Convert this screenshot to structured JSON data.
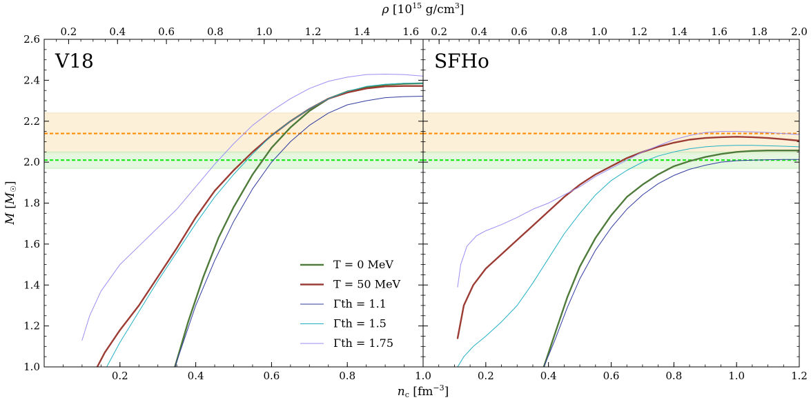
{
  "chart_data": {
    "type": "line",
    "axes": {
      "xlabel": "n_c [fm^-3]",
      "ylabel": "M [M_☉]",
      "top_xlabel": "ρ [10^15 g/cm^3]",
      "ylim": [
        1.0,
        2.6
      ],
      "yticks": [
        1.0,
        1.2,
        1.4,
        1.6,
        1.8,
        2.0,
        2.2,
        2.4,
        2.6
      ]
    },
    "bands": [
      {
        "name": "orange-band",
        "range": [
          2.04,
          2.24
        ],
        "color": "#fdf0d9",
        "edge": "#f3d9ad"
      },
      {
        "name": "green-band",
        "range": [
          1.97,
          2.05
        ],
        "color": "#dff5d8",
        "edge": "#b9e6ad"
      }
    ],
    "hlines": [
      {
        "name": "orange-dashed-line",
        "y": 2.14,
        "color": "#ff8c00"
      },
      {
        "name": "green-dashed-line",
        "y": 2.01,
        "color": "#1cea1c"
      }
    ],
    "series_styles": [
      {
        "key": "t0",
        "color": "#4e7a3a",
        "width": 2.4
      },
      {
        "key": "t50",
        "color": "#9c3b33",
        "width": 2.4
      },
      {
        "key": "g11",
        "color": "#2e3a9e",
        "width": 1.0
      },
      {
        "key": "g15",
        "color": "#1fb0c4",
        "width": 1.0
      },
      {
        "key": "g175",
        "color": "#9a8ef2",
        "width": 1.0
      }
    ],
    "legend": {
      "position": "lower-right",
      "panel": 0,
      "entries": [
        {
          "key": "t0",
          "label": "T = 0 MeV"
        },
        {
          "key": "t50",
          "label": "T = 50 MeV"
        },
        {
          "key": "g11",
          "label": "Γth = 1.1"
        },
        {
          "key": "g15",
          "label": "Γth = 1.5"
        },
        {
          "key": "g175",
          "label": "Γth = 1.75"
        }
      ]
    },
    "panels": [
      {
        "title": "V18",
        "xlim": [
          0.0,
          1.0
        ],
        "xticks": [
          0.2,
          0.4,
          0.6,
          0.8,
          1.0
        ],
        "top_xlim": [
          0.1,
          1.65
        ],
        "top_xticks": [
          0.2,
          0.4,
          0.6,
          0.8,
          1.0,
          1.2,
          1.4,
          1.6
        ],
        "series": [
          {
            "key": "t0",
            "x": [
              0.345,
              0.38,
              0.42,
              0.46,
              0.5,
              0.55,
              0.6,
              0.65,
              0.7,
              0.75,
              0.8,
              0.85,
              0.9,
              0.95,
              1.0
            ],
            "y": [
              1.0,
              1.22,
              1.44,
              1.63,
              1.78,
              1.94,
              2.07,
              2.17,
              2.25,
              2.31,
              2.345,
              2.365,
              2.378,
              2.383,
              2.385
            ]
          },
          {
            "key": "t50",
            "x": [
              0.14,
              0.16,
              0.2,
              0.25,
              0.3,
              0.35,
              0.4,
              0.45,
              0.5,
              0.55,
              0.6,
              0.65,
              0.7,
              0.75,
              0.8,
              0.85,
              0.9,
              0.95,
              1.0
            ],
            "y": [
              1.0,
              1.07,
              1.18,
              1.3,
              1.44,
              1.58,
              1.73,
              1.86,
              1.96,
              2.05,
              2.13,
              2.2,
              2.26,
              2.31,
              2.34,
              2.36,
              2.37,
              2.372,
              2.372
            ]
          },
          {
            "key": "g11",
            "x": [
              0.345,
              0.4,
              0.45,
              0.5,
              0.55,
              0.6,
              0.65,
              0.7,
              0.75,
              0.8,
              0.85,
              0.9,
              0.95,
              1.0
            ],
            "y": [
              1.0,
              1.3,
              1.52,
              1.71,
              1.87,
              2.0,
              2.1,
              2.18,
              2.24,
              2.28,
              2.3,
              2.315,
              2.32,
              2.322
            ]
          },
          {
            "key": "g15",
            "x": [
              0.165,
              0.2,
              0.25,
              0.3,
              0.35,
              0.4,
              0.45,
              0.5,
              0.55,
              0.6,
              0.65,
              0.7,
              0.75,
              0.8,
              0.85,
              0.9,
              0.95,
              1.0
            ],
            "y": [
              1.0,
              1.12,
              1.27,
              1.42,
              1.56,
              1.7,
              1.83,
              1.94,
              2.04,
              2.13,
              2.2,
              2.26,
              2.31,
              2.345,
              2.37,
              2.38,
              2.385,
              2.385
            ]
          },
          {
            "key": "g175",
            "x": [
              0.1,
              0.12,
              0.15,
              0.2,
              0.25,
              0.3,
              0.35,
              0.4,
              0.45,
              0.5,
              0.55,
              0.6,
              0.65,
              0.7,
              0.75,
              0.8,
              0.85,
              0.9,
              0.95,
              1.0
            ],
            "y": [
              1.13,
              1.25,
              1.37,
              1.5,
              1.59,
              1.68,
              1.77,
              1.88,
              1.99,
              2.09,
              2.18,
              2.25,
              2.31,
              2.36,
              2.395,
              2.415,
              2.428,
              2.43,
              2.428,
              2.42
            ]
          }
        ]
      },
      {
        "title": "SFHo",
        "xlim": [
          0.0,
          1.2
        ],
        "xticks": [
          0.2,
          0.4,
          0.6,
          0.8,
          1.0,
          1.2
        ],
        "top_xlim": [
          0.12,
          2.0
        ],
        "top_xticks": [
          0.2,
          0.4,
          0.6,
          0.8,
          1.0,
          1.2,
          1.4,
          1.6,
          1.8,
          2.0
        ],
        "series": [
          {
            "key": "t0",
            "x": [
              0.385,
              0.42,
              0.46,
              0.5,
              0.55,
              0.6,
              0.65,
              0.7,
              0.75,
              0.8,
              0.85,
              0.9,
              0.95,
              1.0,
              1.05,
              1.1,
              1.15,
              1.2
            ],
            "y": [
              1.0,
              1.16,
              1.34,
              1.49,
              1.63,
              1.74,
              1.83,
              1.89,
              1.94,
              1.98,
              2.005,
              2.025,
              2.04,
              2.05,
              2.055,
              2.057,
              2.057,
              2.057
            ]
          },
          {
            "key": "t50",
            "x": [
              0.11,
              0.13,
              0.16,
              0.2,
              0.25,
              0.3,
              0.35,
              0.4,
              0.45,
              0.5,
              0.55,
              0.6,
              0.65,
              0.7,
              0.75,
              0.8,
              0.85,
              0.9,
              0.95,
              1.0,
              1.05,
              1.1,
              1.15,
              1.2
            ],
            "y": [
              1.14,
              1.3,
              1.4,
              1.48,
              1.55,
              1.62,
              1.69,
              1.76,
              1.83,
              1.89,
              1.94,
              1.98,
              2.02,
              2.05,
              2.075,
              2.095,
              2.11,
              2.118,
              2.122,
              2.124,
              2.122,
              2.118,
              2.112,
              2.105
            ]
          },
          {
            "key": "g11",
            "x": [
              0.385,
              0.42,
              0.46,
              0.5,
              0.55,
              0.6,
              0.65,
              0.7,
              0.75,
              0.8,
              0.85,
              0.9,
              0.95,
              1.0,
              1.05,
              1.1,
              1.15,
              1.2
            ],
            "y": [
              1.0,
              1.13,
              1.29,
              1.43,
              1.57,
              1.68,
              1.77,
              1.84,
              1.895,
              1.935,
              1.965,
              1.985,
              2.0,
              2.007,
              2.01,
              2.012,
              2.013,
              2.013
            ]
          },
          {
            "key": "g15",
            "x": [
              0.11,
              0.13,
              0.16,
              0.2,
              0.25,
              0.3,
              0.35,
              0.4,
              0.45,
              0.5,
              0.55,
              0.6,
              0.65,
              0.7,
              0.75,
              0.8,
              0.85,
              0.9,
              0.95,
              1.0,
              1.05,
              1.1,
              1.15,
              1.2
            ],
            "y": [
              1.0,
              1.05,
              1.1,
              1.15,
              1.22,
              1.3,
              1.41,
              1.53,
              1.65,
              1.75,
              1.84,
              1.91,
              1.96,
              2.0,
              2.03,
              2.05,
              2.065,
              2.075,
              2.08,
              2.082,
              2.082,
              2.08,
              2.078,
              2.075
            ]
          },
          {
            "key": "g175",
            "x": [
              0.11,
              0.12,
              0.14,
              0.17,
              0.2,
              0.25,
              0.3,
              0.35,
              0.4,
              0.45,
              0.5,
              0.55,
              0.6,
              0.65,
              0.7,
              0.75,
              0.8,
              0.85,
              0.9,
              0.95,
              1.0,
              1.05,
              1.1,
              1.15,
              1.2
            ],
            "y": [
              1.39,
              1.5,
              1.59,
              1.64,
              1.665,
              1.695,
              1.73,
              1.77,
              1.8,
              1.84,
              1.88,
              1.93,
              1.97,
              2.01,
              2.05,
              2.08,
              2.11,
              2.13,
              2.145,
              2.15,
              2.15,
              2.148,
              2.145,
              2.14,
              2.135
            ]
          }
        ]
      }
    ]
  }
}
